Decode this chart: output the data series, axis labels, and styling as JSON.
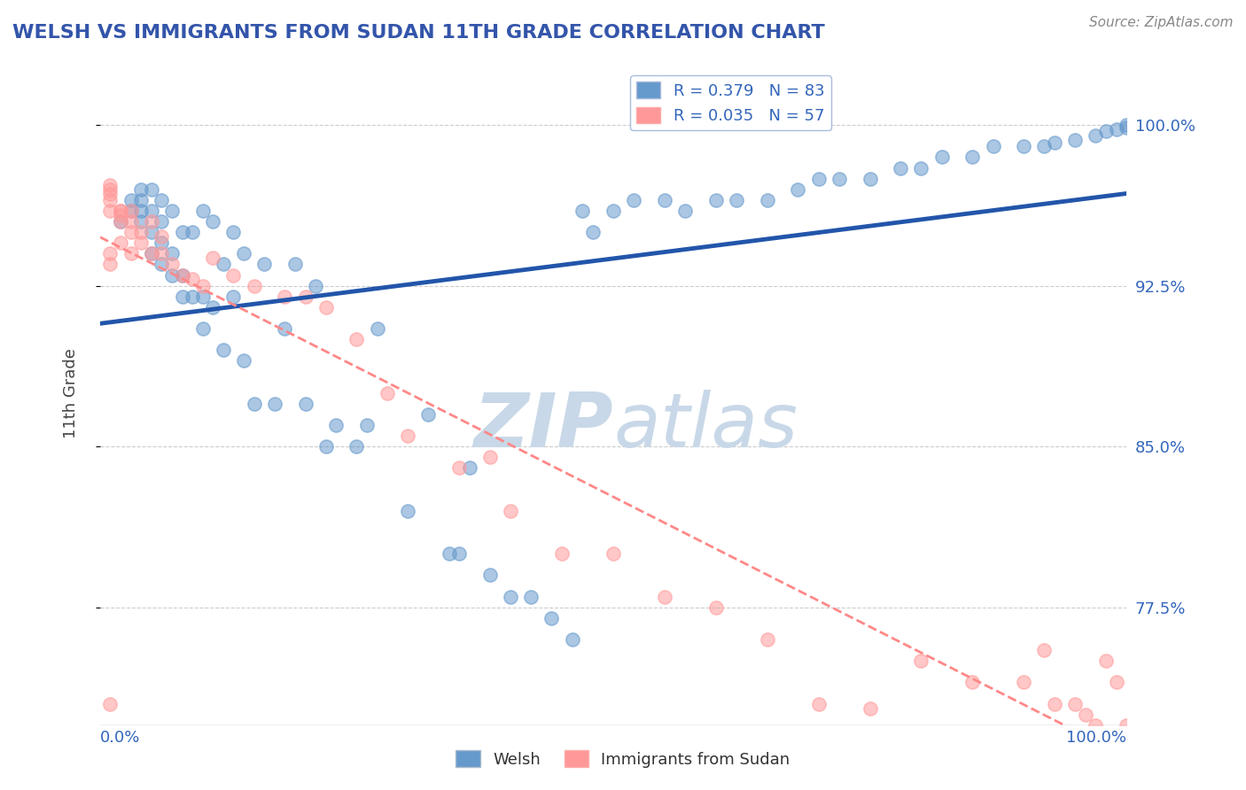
{
  "title": "WELSH VS IMMIGRANTS FROM SUDAN 11TH GRADE CORRELATION CHART",
  "source": "Source: ZipAtlas.com",
  "ylabel": "11th Grade",
  "x_lim": [
    0.0,
    1.0
  ],
  "y_lim": [
    0.72,
    1.03
  ],
  "welsh_color": "#6699CC",
  "sudan_color": "#FF9999",
  "welsh_R": 0.379,
  "welsh_N": 83,
  "sudan_R": 0.035,
  "sudan_N": 57,
  "legend_label_welsh": "Welsh",
  "legend_label_sudan": "Immigrants from Sudan",
  "watermark_zip": "ZIP",
  "watermark_atlas": "atlas",
  "watermark_color_zip": "#C8D8E8",
  "watermark_color_atlas": "#C8D8E8",
  "welsh_x": [
    0.02,
    0.03,
    0.03,
    0.04,
    0.04,
    0.04,
    0.04,
    0.05,
    0.05,
    0.05,
    0.05,
    0.06,
    0.06,
    0.06,
    0.06,
    0.07,
    0.07,
    0.07,
    0.08,
    0.08,
    0.08,
    0.09,
    0.09,
    0.1,
    0.1,
    0.1,
    0.11,
    0.11,
    0.12,
    0.12,
    0.13,
    0.13,
    0.14,
    0.14,
    0.15,
    0.16,
    0.17,
    0.18,
    0.19,
    0.2,
    0.21,
    0.22,
    0.23,
    0.25,
    0.26,
    0.27,
    0.3,
    0.32,
    0.34,
    0.35,
    0.36,
    0.38,
    0.4,
    0.42,
    0.44,
    0.46,
    0.47,
    0.48,
    0.5,
    0.52,
    0.55,
    0.57,
    0.6,
    0.62,
    0.65,
    0.68,
    0.7,
    0.72,
    0.75,
    0.78,
    0.8,
    0.82,
    0.85,
    0.87,
    0.9,
    0.92,
    0.93,
    0.95,
    0.97,
    0.98,
    0.99,
    1.0,
    1.0
  ],
  "welsh_y": [
    0.955,
    0.96,
    0.965,
    0.955,
    0.96,
    0.965,
    0.97,
    0.94,
    0.95,
    0.96,
    0.97,
    0.935,
    0.945,
    0.955,
    0.965,
    0.93,
    0.94,
    0.96,
    0.92,
    0.93,
    0.95,
    0.92,
    0.95,
    0.905,
    0.92,
    0.96,
    0.915,
    0.955,
    0.895,
    0.935,
    0.92,
    0.95,
    0.89,
    0.94,
    0.87,
    0.935,
    0.87,
    0.905,
    0.935,
    0.87,
    0.925,
    0.85,
    0.86,
    0.85,
    0.86,
    0.905,
    0.82,
    0.865,
    0.8,
    0.8,
    0.84,
    0.79,
    0.78,
    0.78,
    0.77,
    0.76,
    0.96,
    0.95,
    0.96,
    0.965,
    0.965,
    0.96,
    0.965,
    0.965,
    0.965,
    0.97,
    0.975,
    0.975,
    0.975,
    0.98,
    0.98,
    0.985,
    0.985,
    0.99,
    0.99,
    0.99,
    0.992,
    0.993,
    0.995,
    0.997,
    0.998,
    0.999,
    1.0
  ],
  "sudan_x": [
    0.01,
    0.01,
    0.01,
    0.01,
    0.01,
    0.01,
    0.01,
    0.02,
    0.02,
    0.02,
    0.02,
    0.03,
    0.03,
    0.03,
    0.03,
    0.04,
    0.04,
    0.05,
    0.05,
    0.06,
    0.06,
    0.07,
    0.08,
    0.09,
    0.1,
    0.11,
    0.13,
    0.15,
    0.18,
    0.2,
    0.22,
    0.25,
    0.28,
    0.3,
    0.35,
    0.38,
    0.4,
    0.45,
    0.5,
    0.55,
    0.6,
    0.65,
    0.7,
    0.75,
    0.8,
    0.85,
    0.9,
    0.92,
    0.93,
    0.95,
    0.96,
    0.97,
    0.98,
    0.99,
    1.0,
    0.01,
    0.02
  ],
  "sudan_y": [
    0.96,
    0.965,
    0.968,
    0.97,
    0.972,
    0.94,
    0.935,
    0.958,
    0.96,
    0.955,
    0.945,
    0.96,
    0.955,
    0.95,
    0.94,
    0.95,
    0.945,
    0.955,
    0.94,
    0.948,
    0.94,
    0.935,
    0.93,
    0.928,
    0.925,
    0.938,
    0.93,
    0.925,
    0.92,
    0.92,
    0.915,
    0.9,
    0.875,
    0.855,
    0.84,
    0.845,
    0.82,
    0.8,
    0.8,
    0.78,
    0.775,
    0.76,
    0.73,
    0.728,
    0.75,
    0.74,
    0.74,
    0.755,
    0.73,
    0.73,
    0.725,
    0.72,
    0.75,
    0.74,
    0.72,
    0.73,
    0.96
  ]
}
